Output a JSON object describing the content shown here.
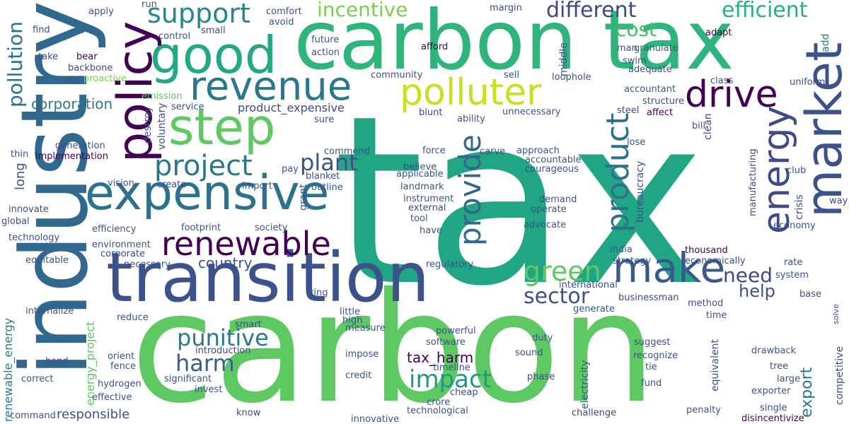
{
  "words": [
    {
      "text": "tax",
      "color": "#21a685"
    },
    {
      "text": "carbon",
      "color": "#5ec962"
    },
    {
      "text": "carbon tax",
      "color": "#2fb47c"
    },
    {
      "text": "industry",
      "color": "#31688e"
    },
    {
      "text": "transition",
      "color": "#3b528b"
    },
    {
      "text": "expensive",
      "color": "#2c728e"
    },
    {
      "text": "step",
      "color": "#5ec962"
    },
    {
      "text": "good",
      "color": "#22a884"
    },
    {
      "text": "market",
      "color": "#3b528b"
    },
    {
      "text": "revenue",
      "color": "#2a788e"
    },
    {
      "text": "polluter",
      "color": "#c8e020"
    },
    {
      "text": "drive",
      "color": "#440154"
    },
    {
      "text": "policy",
      "color": "#440154"
    },
    {
      "text": "make",
      "color": "#38598c"
    },
    {
      "text": "renewable",
      "color": "#440154"
    },
    {
      "text": "energy",
      "color": "#3e4a89"
    },
    {
      "text": "project",
      "color": "#2a788e"
    },
    {
      "text": "support",
      "color": "#23898e"
    },
    {
      "text": "provide",
      "color": "#31688e"
    },
    {
      "text": "product",
      "color": "#2c728e"
    },
    {
      "text": "green",
      "color": "#5ec962"
    },
    {
      "text": "harm",
      "color": "#35608d"
    },
    {
      "text": "punitive",
      "color": "#2a788e"
    },
    {
      "text": "impact",
      "color": "#1f988b"
    },
    {
      "text": "sector",
      "color": "#3b528b"
    },
    {
      "text": "plant",
      "color": "#3b528b"
    },
    {
      "text": "different",
      "color": "#3e4989"
    },
    {
      "text": "efficient",
      "color": "#28ae80"
    },
    {
      "text": "incentive",
      "color": "#7ad151"
    },
    {
      "text": "cost",
      "color": "#44bf70"
    },
    {
      "text": "need",
      "color": "#3e4989"
    },
    {
      "text": "help",
      "color": "#3b528b"
    },
    {
      "text": "pollution",
      "color": "#2c728e"
    },
    {
      "text": "corporation",
      "color": "#2a788e"
    },
    {
      "text": "country",
      "color": "#3b528b"
    },
    {
      "text": "responsible",
      "color": "#3b528b"
    },
    {
      "text": "product_expensive",
      "color": "#3e4a89"
    },
    {
      "text": "tax_harm",
      "color": "#440154"
    },
    {
      "text": "export",
      "color": "#2a788e"
    },
    {
      "text": "renewable_energy",
      "color": "#2a788e"
    },
    {
      "text": "energy_project",
      "color": "#5ec962"
    },
    {
      "text": "long",
      "color": "#3b528b"
    },
    {
      "text": "apply",
      "color": "#3b528b"
    },
    {
      "text": "run",
      "color": "#3b528b"
    },
    {
      "text": "comfort",
      "color": "#3b528b"
    },
    {
      "text": "avoid",
      "color": "#3b528b"
    },
    {
      "text": "margin",
      "color": "#3e4989"
    },
    {
      "text": "control",
      "color": "#3b528b"
    },
    {
      "text": "small",
      "color": "#3e4989"
    },
    {
      "text": "find",
      "color": "#3e4989"
    },
    {
      "text": "future",
      "color": "#3b528b"
    },
    {
      "text": "action",
      "color": "#3b528b"
    },
    {
      "text": "afford",
      "color": "#440154"
    },
    {
      "text": "adapt",
      "color": "#440154"
    },
    {
      "text": "add",
      "color": "#2a788e"
    },
    {
      "text": "take",
      "color": "#3b528b"
    },
    {
      "text": "bear",
      "color": "#440154"
    },
    {
      "text": "backbone",
      "color": "#3e4989"
    },
    {
      "text": "proactive",
      "color": "#7ad151"
    },
    {
      "text": "ask",
      "color": "#3b528b"
    },
    {
      "text": "community",
      "color": "#3b528b"
    },
    {
      "text": "middle",
      "color": "#3b528b"
    },
    {
      "text": "man",
      "color": "#3b528b"
    },
    {
      "text": "granulate",
      "color": "#3b528b"
    },
    {
      "text": "swim",
      "color": "#3b528b"
    },
    {
      "text": "adequate",
      "color": "#3b528b"
    },
    {
      "text": "sell",
      "color": "#3b528b"
    },
    {
      "text": "loophole",
      "color": "#3b528b"
    },
    {
      "text": "class",
      "color": "#3b528b"
    },
    {
      "text": "uniform",
      "color": "#3e4989"
    },
    {
      "text": "emission",
      "color": "#5ec962"
    },
    {
      "text": "destroy",
      "color": "#3b528b"
    },
    {
      "text": "voluntary",
      "color": "#3b528b"
    },
    {
      "text": "service",
      "color": "#3b528b"
    },
    {
      "text": "blunt",
      "color": "#3e4989"
    },
    {
      "text": "ability",
      "color": "#3b528b"
    },
    {
      "text": "unnecessary",
      "color": "#3b528b"
    },
    {
      "text": "accountant",
      "color": "#3b528b"
    },
    {
      "text": "structure",
      "color": "#3b528b"
    },
    {
      "text": "steel",
      "color": "#3e4989"
    },
    {
      "text": "affect",
      "color": "#440154"
    },
    {
      "text": "clean",
      "color": "#3e4989"
    },
    {
      "text": "bill",
      "color": "#3b528b"
    },
    {
      "text": "sure",
      "color": "#3b528b"
    },
    {
      "text": "thin",
      "color": "#3b528b"
    },
    {
      "text": "generation",
      "color": "#3b528b"
    },
    {
      "text": "implementation",
      "color": "#440154"
    },
    {
      "text": "commend",
      "color": "#3b528b"
    },
    {
      "text": "force",
      "color": "#3b528b"
    },
    {
      "text": "carve",
      "color": "#3e4989"
    },
    {
      "text": "approach",
      "color": "#3b528b"
    },
    {
      "text": "accountable",
      "color": "#3b528b"
    },
    {
      "text": "courageous",
      "color": "#3b528b"
    },
    {
      "text": "lose",
      "color": "#3b528b"
    },
    {
      "text": "bureaucracy",
      "color": "#3b528b"
    },
    {
      "text": "manufacturing",
      "color": "#3b528b"
    },
    {
      "text": "club",
      "color": "#3b528b"
    },
    {
      "text": "crisis",
      "color": "#3e4989"
    },
    {
      "text": "way",
      "color": "#3e4989"
    },
    {
      "text": "believe",
      "color": "#3b528b"
    },
    {
      "text": "pay",
      "color": "#3b528b"
    },
    {
      "text": "blanket",
      "color": "#3b528b"
    },
    {
      "text": "applicable",
      "color": "#3b528b"
    },
    {
      "text": "vision",
      "color": "#3b528b"
    },
    {
      "text": "create",
      "color": "#3e4989"
    },
    {
      "text": "import",
      "color": "#3b528b"
    },
    {
      "text": "grant",
      "color": "#3b528b"
    },
    {
      "text": "outline",
      "color": "#3b528b"
    },
    {
      "text": "landmark",
      "color": "#3b528b"
    },
    {
      "text": "instrument",
      "color": "#3b528b"
    },
    {
      "text": "external",
      "color": "#3e4989"
    },
    {
      "text": "demand",
      "color": "#3b528b"
    },
    {
      "text": "operate",
      "color": "#3b528b"
    },
    {
      "text": "advocate",
      "color": "#3b528b"
    },
    {
      "text": "innovate",
      "color": "#3e4989"
    },
    {
      "text": "global",
      "color": "#3b528b"
    },
    {
      "text": "technology",
      "color": "#3b528b"
    },
    {
      "text": "efficiency",
      "color": "#3b528b"
    },
    {
      "text": "footprint",
      "color": "#3b528b"
    },
    {
      "text": "society",
      "color": "#3b528b"
    },
    {
      "text": "tool",
      "color": "#3b528b"
    },
    {
      "text": "have",
      "color": "#3b528b"
    },
    {
      "text": "economy",
      "color": "#3b528b"
    },
    {
      "text": "environment",
      "color": "#3b528b"
    },
    {
      "text": "corporate",
      "color": "#3e4989"
    },
    {
      "text": "india",
      "color": "#3b528b"
    },
    {
      "text": "thousand",
      "color": "#440154"
    },
    {
      "text": "equitable",
      "color": "#3b528b"
    },
    {
      "text": "necessary",
      "color": "#3b528b"
    },
    {
      "text": "regulatory",
      "color": "#3b528b"
    },
    {
      "text": "strategy",
      "color": "#3b528b"
    },
    {
      "text": "economically",
      "color": "#3e4989"
    },
    {
      "text": "rate",
      "color": "#3b528b"
    },
    {
      "text": "system",
      "color": "#3b528b"
    },
    {
      "text": "international",
      "color": "#3e4989"
    },
    {
      "text": "base",
      "color": "#3b528b"
    },
    {
      "text": "businessman",
      "color": "#3e4989"
    },
    {
      "text": "method",
      "color": "#3b528b"
    },
    {
      "text": "ring",
      "color": "#3b528b"
    },
    {
      "text": "internalize",
      "color": "#3b528b"
    },
    {
      "text": "reduce",
      "color": "#3b528b"
    },
    {
      "text": "little",
      "color": "#3b528b"
    },
    {
      "text": "generate",
      "color": "#3b528b"
    },
    {
      "text": "time",
      "color": "#3b528b"
    },
    {
      "text": "solve",
      "color": "#3b528b"
    },
    {
      "text": "smart",
      "color": "#3b528b"
    },
    {
      "text": "high",
      "color": "#3e4989"
    },
    {
      "text": "measure",
      "color": "#3b528b"
    },
    {
      "text": "powerful",
      "color": "#3b528b"
    },
    {
      "text": "duty",
      "color": "#3b528b"
    },
    {
      "text": "software",
      "color": "#3b528b"
    },
    {
      "text": "introduction",
      "color": "#3e4989"
    },
    {
      "text": "orient",
      "color": "#3b528b"
    },
    {
      "text": "fence",
      "color": "#3b528b"
    },
    {
      "text": "impose",
      "color": "#3b528b"
    },
    {
      "text": "sound",
      "color": "#3b528b"
    },
    {
      "text": "suggest",
      "color": "#3b528b"
    },
    {
      "text": "drawback",
      "color": "#3b528b"
    },
    {
      "text": "equivalent",
      "color": "#3b528b"
    },
    {
      "text": "competitive",
      "color": "#3b528b"
    },
    {
      "text": "hand",
      "color": "#3b528b"
    },
    {
      "text": "timeline",
      "color": "#3b528b"
    },
    {
      "text": "recognize",
      "color": "#3b528b"
    },
    {
      "text": "tree",
      "color": "#3e4989"
    },
    {
      "text": "correct",
      "color": "#3b528b"
    },
    {
      "text": "significant",
      "color": "#3b528b"
    },
    {
      "text": "credit",
      "color": "#3b528b"
    },
    {
      "text": "phase",
      "color": "#3e4989"
    },
    {
      "text": "tie",
      "color": "#3b528b"
    },
    {
      "text": "large",
      "color": "#3b528b"
    },
    {
      "text": "hydrogen",
      "color": "#3b528b"
    },
    {
      "text": "invest",
      "color": "#3b528b"
    },
    {
      "text": "cheap",
      "color": "#3e4989"
    },
    {
      "text": "electricity",
      "color": "#3b528b"
    },
    {
      "text": "fund",
      "color": "#3b528b"
    },
    {
      "text": "exporter",
      "color": "#3b528b"
    },
    {
      "text": "effective",
      "color": "#3b528b"
    },
    {
      "text": "crore",
      "color": "#3b528b"
    },
    {
      "text": "command",
      "color": "#3b528b"
    },
    {
      "text": "know",
      "color": "#3e4989"
    },
    {
      "text": "technological",
      "color": "#3b528b"
    },
    {
      "text": "challenge",
      "color": "#3e4989"
    },
    {
      "text": "penalty",
      "color": "#3b528b"
    },
    {
      "text": "single",
      "color": "#3b528b"
    },
    {
      "text": "innovative",
      "color": "#3b528b"
    },
    {
      "text": "disincentivize",
      "color": "#440154"
    }
  ]
}
